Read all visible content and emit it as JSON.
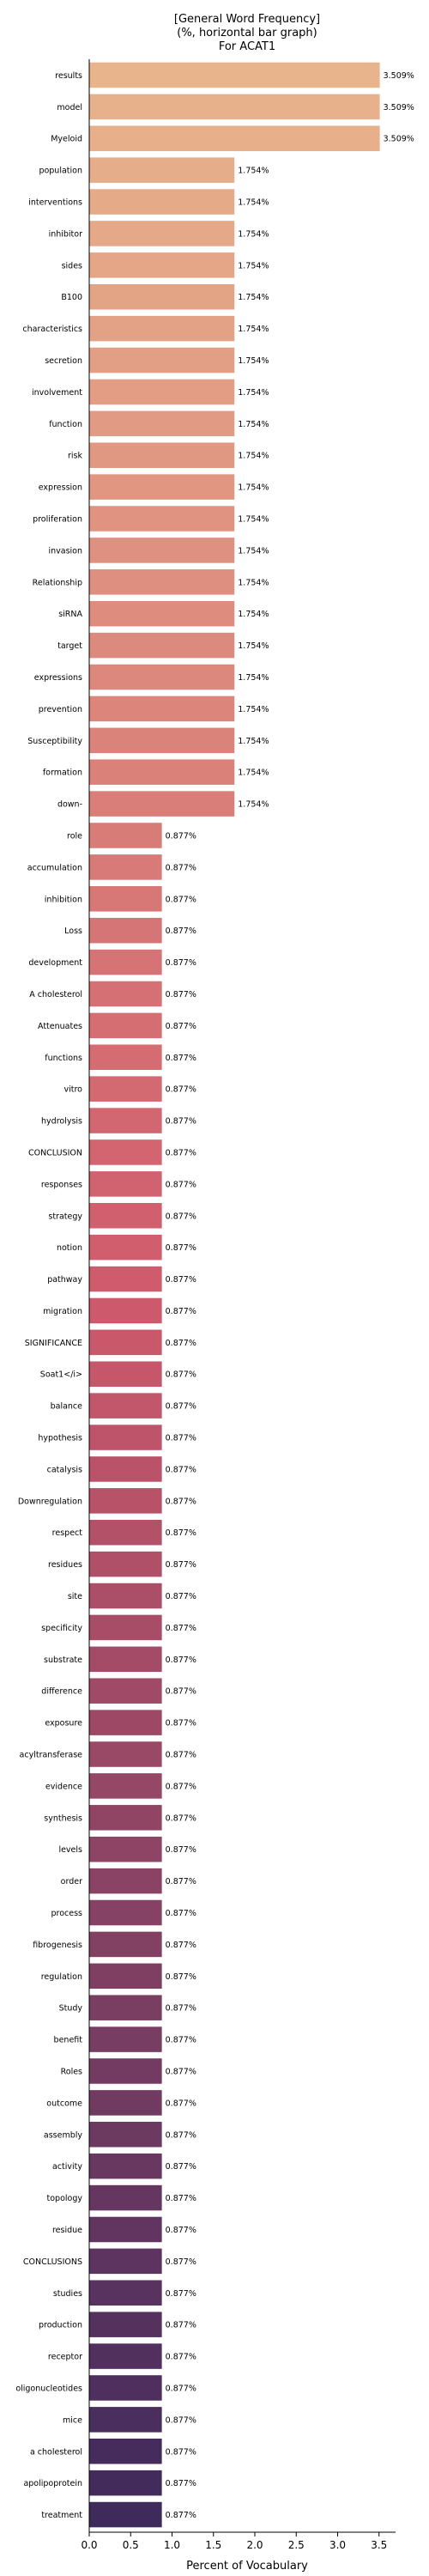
{
  "chart_data": {
    "type": "bar",
    "orientation": "horizontal",
    "title_lines": [
      "[General Word Frequency]",
      "(%, horizontal bar graph)",
      "For ACAT1"
    ],
    "xlabel": "Percent of Vocabulary",
    "ylabel": "",
    "xlim": [
      0,
      3.7
    ],
    "xticks": [
      "0.0",
      "0.5",
      "1.0",
      "1.5",
      "2.0",
      "2.5",
      "3.0",
      "3.5"
    ],
    "categories": [
      "results",
      "model",
      "Myeloid",
      "population",
      "interventions",
      "inhibitor",
      "sides",
      "B100",
      "characteristics",
      "secretion",
      "involvement",
      "function",
      "risk",
      "expression",
      "proliferation",
      "invasion",
      "Relationship",
      "siRNA",
      "target",
      "expressions",
      "prevention",
      "Susceptibility",
      "formation",
      "down-",
      "role",
      "accumulation",
      "inhibition",
      "Loss",
      "development",
      "A cholesterol",
      "Attenuates",
      "functions",
      "vitro",
      "hydrolysis",
      "CONCLUSION",
      "responses",
      "strategy",
      "notion",
      "pathway",
      "migration",
      "SIGNIFICANCE",
      "Soat1</i>",
      "balance",
      "hypothesis",
      "catalysis",
      "Downregulation",
      "respect",
      "residues",
      "site",
      "specificity",
      "substrate",
      "difference",
      "exposure",
      "acyltransferase",
      "evidence",
      "synthesis",
      "levels",
      "order",
      "process",
      "fibrogenesis",
      "regulation",
      "Study",
      "benefit",
      "Roles",
      "outcome",
      "assembly",
      "activity",
      "topology",
      "residue",
      "CONCLUSIONS",
      "studies",
      "production",
      "receptor",
      "oligonucleotides",
      "mice",
      "a cholesterol",
      "apolipoprotein",
      "treatment"
    ],
    "values": [
      3.509,
      3.509,
      3.509,
      1.754,
      1.754,
      1.754,
      1.754,
      1.754,
      1.754,
      1.754,
      1.754,
      1.754,
      1.754,
      1.754,
      1.754,
      1.754,
      1.754,
      1.754,
      1.754,
      1.754,
      1.754,
      1.754,
      1.754,
      1.754,
      0.877,
      0.877,
      0.877,
      0.877,
      0.877,
      0.877,
      0.877,
      0.877,
      0.877,
      0.877,
      0.877,
      0.877,
      0.877,
      0.877,
      0.877,
      0.877,
      0.877,
      0.877,
      0.877,
      0.877,
      0.877,
      0.877,
      0.877,
      0.877,
      0.877,
      0.877,
      0.877,
      0.877,
      0.877,
      0.877,
      0.877,
      0.877,
      0.877,
      0.877,
      0.877,
      0.877,
      0.877,
      0.877,
      0.877,
      0.877,
      0.877,
      0.877,
      0.877,
      0.877,
      0.877,
      0.877,
      0.877,
      0.877,
      0.877,
      0.877,
      0.877,
      0.877,
      0.877,
      0.877
    ],
    "value_labels": [
      "3.509%",
      "3.509%",
      "3.509%",
      "1.754%",
      "1.754%",
      "1.754%",
      "1.754%",
      "1.754%",
      "1.754%",
      "1.754%",
      "1.754%",
      "1.754%",
      "1.754%",
      "1.754%",
      "1.754%",
      "1.754%",
      "1.754%",
      "1.754%",
      "1.754%",
      "1.754%",
      "1.754%",
      "1.754%",
      "1.754%",
      "1.754%",
      "0.877%",
      "0.877%",
      "0.877%",
      "0.877%",
      "0.877%",
      "0.877%",
      "0.877%",
      "0.877%",
      "0.877%",
      "0.877%",
      "0.877%",
      "0.877%",
      "0.877%",
      "0.877%",
      "0.877%",
      "0.877%",
      "0.877%",
      "0.877%",
      "0.877%",
      "0.877%",
      "0.877%",
      "0.877%",
      "0.877%",
      "0.877%",
      "0.877%",
      "0.877%",
      "0.877%",
      "0.877%",
      "0.877%",
      "0.877%",
      "0.877%",
      "0.877%",
      "0.877%",
      "0.877%",
      "0.877%",
      "0.877%",
      "0.877%",
      "0.877%",
      "0.877%",
      "0.877%",
      "0.877%",
      "0.877%",
      "0.877%",
      "0.877%",
      "0.877%",
      "0.877%",
      "0.877%",
      "0.877%",
      "0.877%",
      "0.877%",
      "0.877%",
      "0.877%",
      "0.877%",
      "0.877%"
    ],
    "color_start": "#e8b48c",
    "color_mid": "#cf5a6c",
    "color_end": "#3f2a5c",
    "grid": false,
    "legend": "none"
  }
}
